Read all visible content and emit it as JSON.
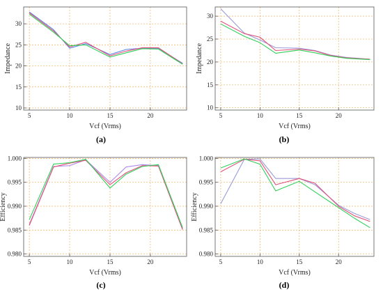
{
  "charts": [
    {
      "caption": "(a)",
      "chart_data": {
        "type": "line",
        "xlabel": "Vcf  (Vrms)",
        "ylabel": "Impedance",
        "xlim": [
          4.3,
          24.5
        ],
        "ylim": [
          9.5,
          34
        ],
        "xticks": [
          5,
          10,
          15,
          20
        ],
        "yticks": [
          10,
          15,
          20,
          25,
          30
        ],
        "grid": true,
        "x": [
          5,
          8,
          10,
          12,
          15,
          17,
          19,
          21,
          24
        ],
        "series": [
          {
            "color": "#5b86e5",
            "values": [
              32.8,
              28.6,
              24.2,
              25.3,
              22.7,
              23.9,
              24.2,
              24.2,
              20.6
            ]
          },
          {
            "color": "#e0507a",
            "values": [
              32.6,
              28.3,
              24.5,
              25.6,
              22.4,
              23.5,
              24.3,
              24.3,
              20.5
            ]
          },
          {
            "color": "#30d05a",
            "values": [
              32.3,
              28.0,
              24.8,
              25.0,
              22.1,
              23.1,
              24.1,
              24.0,
              20.4
            ]
          }
        ]
      }
    },
    {
      "caption": "(b)",
      "chart_data": {
        "type": "line",
        "xlabel": "Vcf  (Vrms)",
        "ylabel": "Impedance",
        "xlim": [
          4.3,
          24.5
        ],
        "ylim": [
          9.5,
          32
        ],
        "xticks": [
          5,
          10,
          15,
          20
        ],
        "yticks": [
          10,
          15,
          20,
          25,
          30
        ],
        "grid": true,
        "x": [
          5,
          8,
          10,
          12,
          15,
          17,
          19,
          21,
          24
        ],
        "series": [
          {
            "color": "#9a9ad8",
            "values": [
              31.6,
              26.3,
              24.8,
              23.1,
              23.0,
              22.5,
              21.5,
              21.0,
              20.6
            ]
          },
          {
            "color": "#e0507a",
            "values": [
              28.9,
              26.2,
              25.4,
              22.5,
              22.8,
              22.4,
              21.4,
              20.9,
              20.6
            ]
          },
          {
            "color": "#30d05a",
            "values": [
              28.3,
              25.6,
              24.2,
              21.9,
              22.6,
              22.0,
              21.3,
              20.8,
              20.5
            ]
          }
        ]
      }
    },
    {
      "caption": "(c)",
      "chart_data": {
        "type": "line",
        "xlabel": "Vcf  (Vrms)",
        "ylabel": "Efficiency",
        "xlim": [
          4.3,
          24.5
        ],
        "ylim": [
          0.9795,
          1.0002
        ],
        "xticks": [
          5,
          10,
          15,
          20
        ],
        "yticks": [
          0.98,
          0.985,
          0.99,
          0.995,
          1.0
        ],
        "ytick_labels": [
          "0.980",
          "0.985",
          "0.990",
          "0.995",
          "1.000"
        ],
        "grid": true,
        "x": [
          5,
          8,
          10,
          12,
          15,
          17,
          19,
          21,
          24
        ],
        "series": [
          {
            "color": "#b08ae8",
            "values": [
              0.9862,
              0.9983,
              0.9985,
              0.9997,
              0.995,
              0.9982,
              0.9987,
              0.9985,
              0.9853
            ]
          },
          {
            "color": "#e0507a",
            "values": [
              0.986,
              0.9982,
              0.999,
              0.9996,
              0.9945,
              0.997,
              0.9985,
              0.9984,
              0.9851
            ]
          },
          {
            "color": "#30d05a",
            "values": [
              0.9872,
              0.9988,
              0.9991,
              0.9998,
              0.9938,
              0.9967,
              0.9983,
              0.9987,
              0.9855
            ]
          }
        ]
      }
    },
    {
      "caption": "(d)",
      "chart_data": {
        "type": "line",
        "xlabel": "Vcf  (Vrms)",
        "ylabel": "Efficiency",
        "xlim": [
          4.3,
          24.5
        ],
        "ylim": [
          0.9795,
          1.0002
        ],
        "xticks": [
          5,
          10,
          15,
          20
        ],
        "yticks": [
          0.98,
          0.985,
          0.99,
          0.995,
          1.0
        ],
        "ytick_labels": [
          "0.980",
          "0.985",
          "0.990",
          "0.995",
          "1.000"
        ],
        "grid": true,
        "x": [
          5,
          8,
          10,
          12,
          15,
          17,
          20,
          22,
          24
        ],
        "series": [
          {
            "color": "#9a9ad8",
            "values": [
              0.9905,
              0.9998,
              0.9999,
              0.9958,
              0.9958,
              0.9945,
              0.9902,
              0.9885,
              0.9872
            ]
          },
          {
            "color": "#e0507a",
            "values": [
              0.9972,
              0.9998,
              0.9995,
              0.9945,
              0.9958,
              0.9948,
              0.99,
              0.988,
              0.9868
            ]
          },
          {
            "color": "#30d05a",
            "values": [
              0.998,
              0.9999,
              0.9988,
              0.9932,
              0.9952,
              0.993,
              0.9897,
              0.9875,
              0.9855
            ]
          }
        ]
      }
    }
  ]
}
